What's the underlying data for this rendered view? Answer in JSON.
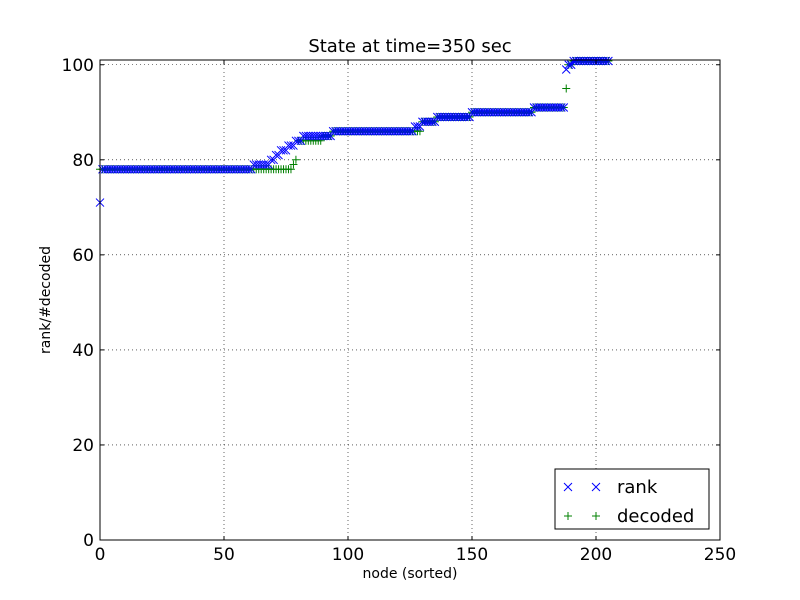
{
  "chart_data": {
    "type": "scatter",
    "title": "State at time=350 sec",
    "xlabel": "node (sorted)",
    "ylabel": "rank/#decoded",
    "xlim": [
      0,
      250
    ],
    "ylim": [
      0,
      101
    ],
    "xticks": [
      0,
      50,
      100,
      150,
      200,
      250
    ],
    "yticks": [
      0,
      20,
      40,
      60,
      80,
      100
    ],
    "grid": true,
    "legend_position": "lower-right",
    "series": [
      {
        "name": "rank",
        "marker": "x",
        "color": "#0000ff",
        "x": [
          0,
          1,
          2,
          3,
          4,
          5,
          6,
          7,
          8,
          9,
          10,
          11,
          12,
          13,
          14,
          15,
          16,
          17,
          18,
          19,
          20,
          21,
          22,
          23,
          24,
          25,
          26,
          27,
          28,
          29,
          30,
          31,
          32,
          33,
          34,
          35,
          36,
          37,
          38,
          39,
          40,
          41,
          42,
          43,
          44,
          45,
          46,
          47,
          48,
          49,
          50,
          51,
          52,
          53,
          54,
          55,
          56,
          57,
          58,
          59,
          60,
          61,
          62,
          63,
          64,
          65,
          66,
          67,
          68,
          69,
          70,
          71,
          72,
          73,
          74,
          75,
          76,
          77,
          78,
          79,
          80,
          81,
          82,
          83,
          84,
          85,
          86,
          87,
          88,
          89,
          90,
          91,
          92,
          93,
          94,
          95,
          96,
          97,
          98,
          99,
          100,
          101,
          102,
          103,
          104,
          105,
          106,
          107,
          108,
          109,
          110,
          111,
          112,
          113,
          114,
          115,
          116,
          117,
          118,
          119,
          120,
          121,
          122,
          123,
          124,
          125,
          126,
          127,
          128,
          129,
          130,
          131,
          132,
          133,
          134,
          135,
          136,
          137,
          138,
          139,
          140,
          141,
          142,
          143,
          144,
          145,
          146,
          147,
          148,
          149,
          150,
          151,
          152,
          153,
          154,
          155,
          156,
          157,
          158,
          159,
          160,
          161,
          162,
          163,
          164,
          165,
          166,
          167,
          168,
          169,
          170,
          171,
          172,
          173,
          174,
          175,
          176,
          177,
          178,
          179,
          180,
          181,
          182,
          183,
          184,
          185,
          186,
          187,
          188,
          189,
          190,
          191,
          192,
          193,
          194,
          195,
          196,
          197,
          198,
          199,
          200,
          201,
          202,
          203,
          204,
          205
        ],
        "y": [
          71,
          78,
          78,
          78,
          78,
          78,
          78,
          78,
          78,
          78,
          78,
          78,
          78,
          78,
          78,
          78,
          78,
          78,
          78,
          78,
          78,
          78,
          78,
          78,
          78,
          78,
          78,
          78,
          78,
          78,
          78,
          78,
          78,
          78,
          78,
          78,
          78,
          78,
          78,
          78,
          78,
          78,
          78,
          78,
          78,
          78,
          78,
          78,
          78,
          78,
          78,
          78,
          78,
          78,
          78,
          78,
          78,
          78,
          78,
          78,
          78,
          78,
          79,
          79,
          79,
          79,
          79,
          79,
          79,
          80,
          80,
          81,
          81,
          82,
          82,
          82,
          83,
          83,
          83,
          84,
          84,
          84,
          85,
          85,
          85,
          85,
          85,
          85,
          85,
          85,
          85,
          85,
          85,
          85,
          86,
          86,
          86,
          86,
          86,
          86,
          86,
          86,
          86,
          86,
          86,
          86,
          86,
          86,
          86,
          86,
          86,
          86,
          86,
          86,
          86,
          86,
          86,
          86,
          86,
          86,
          86,
          86,
          86,
          86,
          86,
          86,
          86,
          87,
          87,
          87,
          88,
          88,
          88,
          88,
          88,
          88,
          89,
          89,
          89,
          89,
          89,
          89,
          89,
          89,
          89,
          89,
          89,
          89,
          89,
          89,
          90,
          90,
          90,
          90,
          90,
          90,
          90,
          90,
          90,
          90,
          90,
          90,
          90,
          90,
          90,
          90,
          90,
          90,
          90,
          90,
          90,
          90,
          90,
          90,
          90,
          91,
          91,
          91,
          91,
          91,
          91,
          91,
          91,
          91,
          91,
          91,
          91,
          91,
          99,
          100,
          100,
          101,
          101,
          101,
          101,
          101,
          101,
          101,
          101,
          101,
          101,
          101,
          101,
          101,
          101,
          101
        ]
      },
      {
        "name": "decoded",
        "marker": "+",
        "color": "#008000",
        "x": [
          0,
          1,
          2,
          3,
          4,
          5,
          6,
          7,
          8,
          9,
          10,
          11,
          12,
          13,
          14,
          15,
          16,
          17,
          18,
          19,
          20,
          21,
          22,
          23,
          24,
          25,
          26,
          27,
          28,
          29,
          30,
          31,
          32,
          33,
          34,
          35,
          36,
          37,
          38,
          39,
          40,
          41,
          42,
          43,
          44,
          45,
          46,
          47,
          48,
          49,
          50,
          51,
          52,
          53,
          54,
          55,
          56,
          57,
          58,
          59,
          60,
          61,
          62,
          63,
          64,
          65,
          66,
          67,
          68,
          69,
          70,
          71,
          72,
          73,
          74,
          75,
          76,
          77,
          78,
          79,
          80,
          81,
          82,
          83,
          84,
          85,
          86,
          87,
          88,
          89,
          90,
          91,
          92,
          93,
          94,
          95,
          96,
          97,
          98,
          99,
          100,
          101,
          102,
          103,
          104,
          105,
          106,
          107,
          108,
          109,
          110,
          111,
          112,
          113,
          114,
          115,
          116,
          117,
          118,
          119,
          120,
          121,
          122,
          123,
          124,
          125,
          126,
          127,
          128,
          129,
          130,
          131,
          132,
          133,
          134,
          135,
          136,
          137,
          138,
          139,
          140,
          141,
          142,
          143,
          144,
          145,
          146,
          147,
          148,
          149,
          150,
          151,
          152,
          153,
          154,
          155,
          156,
          157,
          158,
          159,
          160,
          161,
          162,
          163,
          164,
          165,
          166,
          167,
          168,
          169,
          170,
          171,
          172,
          173,
          174,
          175,
          176,
          177,
          178,
          179,
          180,
          181,
          182,
          183,
          184,
          185,
          186,
          187,
          188,
          189,
          190,
          191,
          192,
          193,
          194,
          195,
          196,
          197,
          198,
          199,
          200,
          201,
          202,
          203,
          204,
          205
        ],
        "y": [
          78,
          78,
          78,
          78,
          78,
          78,
          78,
          78,
          78,
          78,
          78,
          78,
          78,
          78,
          78,
          78,
          78,
          78,
          78,
          78,
          78,
          78,
          78,
          78,
          78,
          78,
          78,
          78,
          78,
          78,
          78,
          78,
          78,
          78,
          78,
          78,
          78,
          78,
          78,
          78,
          78,
          78,
          78,
          78,
          78,
          78,
          78,
          78,
          78,
          78,
          78,
          78,
          78,
          78,
          78,
          78,
          78,
          78,
          78,
          78,
          78,
          78,
          78,
          78,
          78,
          78,
          78,
          78,
          78,
          78,
          78,
          78,
          78,
          78,
          78,
          78,
          78,
          78,
          79,
          80,
          84,
          84,
          84,
          84,
          84,
          84,
          84,
          84,
          84,
          84,
          85,
          85,
          85,
          85,
          86,
          86,
          86,
          86,
          86,
          86,
          86,
          86,
          86,
          86,
          86,
          86,
          86,
          86,
          86,
          86,
          86,
          86,
          86,
          86,
          86,
          86,
          86,
          86,
          86,
          86,
          86,
          86,
          86,
          86,
          86,
          86,
          86,
          86,
          86,
          86,
          88,
          88,
          88,
          88,
          88,
          88,
          89,
          89,
          89,
          89,
          89,
          89,
          89,
          89,
          89,
          89,
          89,
          89,
          89,
          89,
          90,
          90,
          90,
          90,
          90,
          90,
          90,
          90,
          90,
          90,
          90,
          90,
          90,
          90,
          90,
          90,
          90,
          90,
          90,
          90,
          90,
          90,
          90,
          90,
          90,
          91,
          91,
          91,
          91,
          91,
          91,
          91,
          91,
          91,
          91,
          91,
          91,
          91,
          95,
          100,
          100,
          101,
          101,
          101,
          101,
          101,
          101,
          101,
          101,
          101,
          101,
          101,
          101,
          101,
          101,
          101
        ]
      }
    ]
  }
}
